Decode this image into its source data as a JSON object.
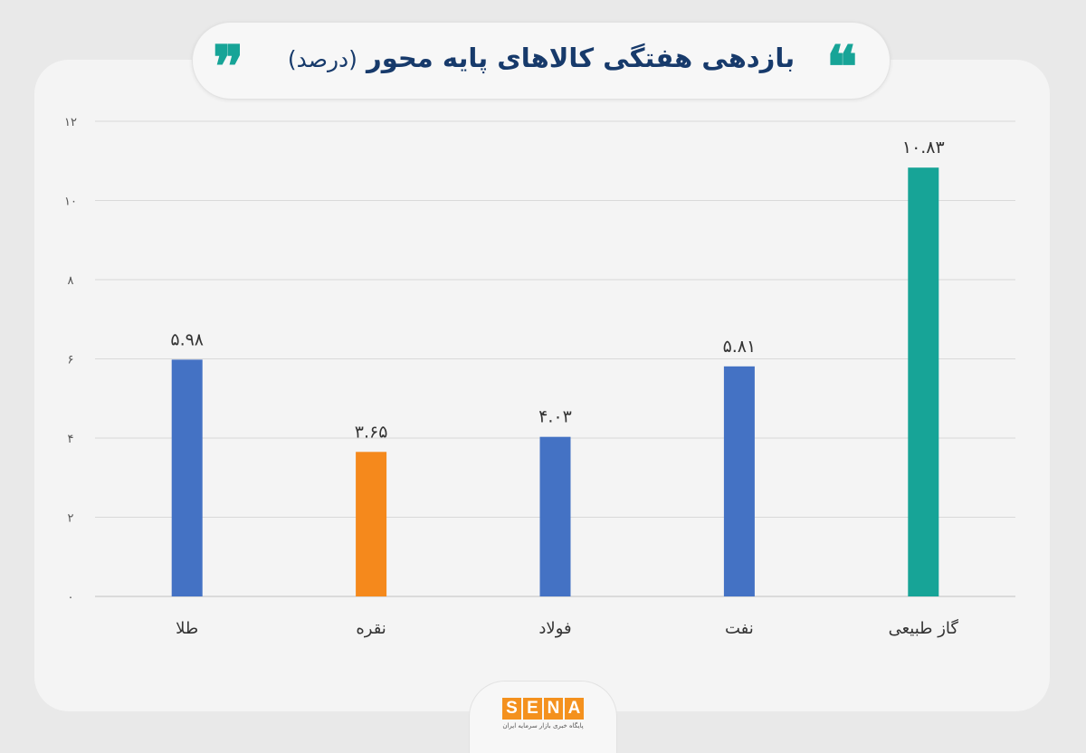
{
  "header": {
    "title": "بازدهی هفتگی کالاهای پایه محور",
    "unit": "(درصد)",
    "quote_open": "❞",
    "quote_close": "❝"
  },
  "footer": {
    "logo_letters": [
      "S",
      "E",
      "N",
      "A"
    ],
    "tagline": "پایگاه خبری بازار سرمایه ایران"
  },
  "colors": {
    "blue": "#4472c4",
    "orange": "#f5891c",
    "teal": "#17a497",
    "grid": "#d9d9d9",
    "text": "#333333"
  },
  "chart_data": {
    "type": "bar",
    "categories": [
      "طلا",
      "نقره",
      "فولاد",
      "نفت",
      "گاز طبیعی"
    ],
    "values": [
      5.98,
      3.65,
      4.03,
      5.81,
      10.83
    ],
    "value_labels": [
      "۵.۹۸",
      "۳.۶۵",
      "۴.۰۳",
      "۵.۸۱",
      "۱۰.۸۳"
    ],
    "bar_colors": [
      "#4472c4",
      "#f5891c",
      "#4472c4",
      "#4472c4",
      "#17a497"
    ],
    "yticks": [
      0,
      2,
      4,
      6,
      8,
      10,
      12
    ],
    "ytick_labels": [
      "۰",
      "۲",
      "۴",
      "۶",
      "۸",
      "۱۰",
      "۱۲"
    ],
    "ylim": [
      0,
      12
    ],
    "grid": true,
    "title": "بازدهی هفتگی کالاهای پایه محور (درصد)",
    "xlabel": "",
    "ylabel": ""
  }
}
